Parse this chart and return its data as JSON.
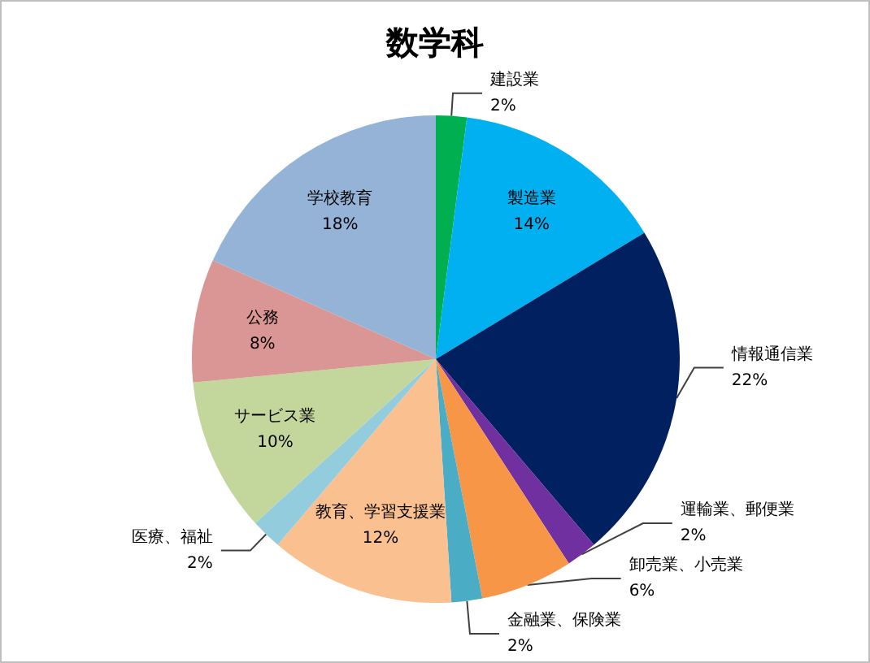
{
  "chart_data": {
    "type": "pie",
    "title": "数学科",
    "categories": [
      "建設業",
      "製造業",
      "情報通信業",
      "運輸業、郵便業",
      "卸売業、小売業",
      "金融業、保険業",
      "教育、学習支援業",
      "医療、福祉",
      "サービス業",
      "公務",
      "学校教育"
    ],
    "values": [
      2,
      14,
      22,
      2,
      6,
      2,
      12,
      2,
      10,
      8,
      18
    ],
    "colors": [
      "#00b050",
      "#00b0f0",
      "#002060",
      "#7030a0",
      "#f79646",
      "#4bacc6",
      "#fac090",
      "#93cddd",
      "#c3d69b",
      "#d99694",
      "#95b3d7"
    ],
    "value_labels": [
      "2%",
      "14%",
      "22%",
      "2%",
      "6%",
      "2%",
      "12%",
      "2%",
      "10%",
      "8%",
      "18%"
    ]
  }
}
